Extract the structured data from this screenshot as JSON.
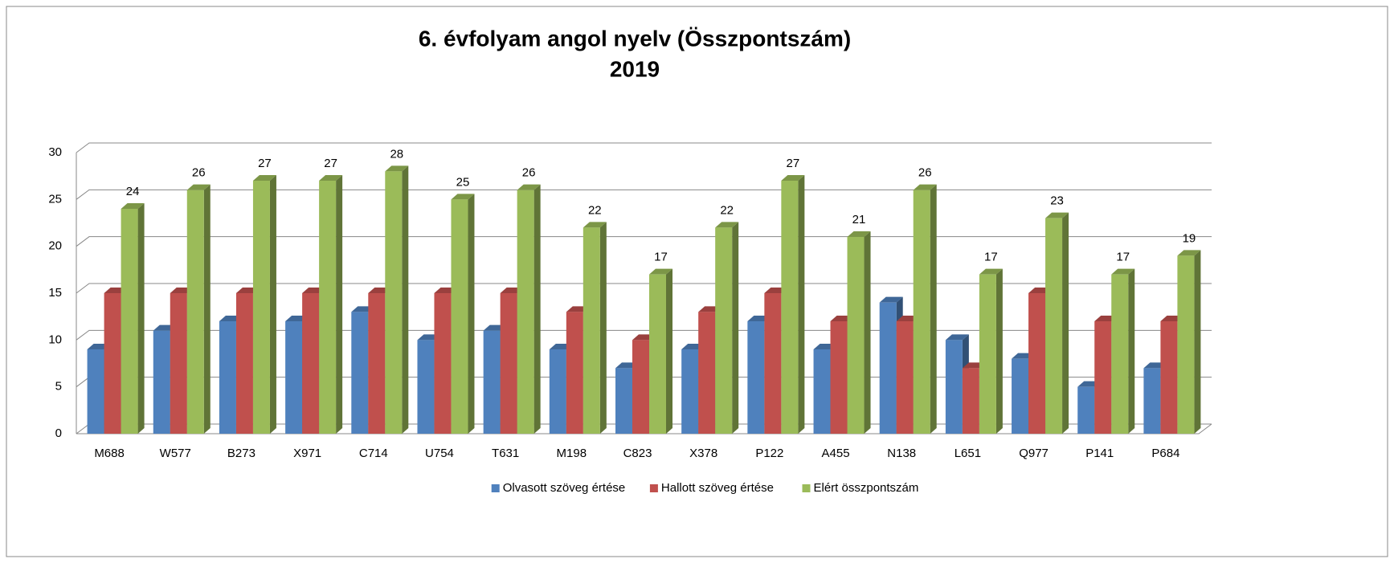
{
  "chart_data": {
    "type": "bar3d",
    "title": "6. évfolyam angol nyelv (Összpontszám)",
    "subtitle": "2019",
    "categories": [
      "M688",
      "W577",
      "B273",
      "X971",
      "C714",
      "U754",
      "T631",
      "M198",
      "C823",
      "X378",
      "P122",
      "A455",
      "N138",
      "L651",
      "Q977",
      "P141",
      "P684"
    ],
    "series": [
      {
        "name": "Olvasott szöveg értése",
        "color": "#4f81bd",
        "values": [
          9,
          11,
          12,
          12,
          13,
          10,
          11,
          9,
          7,
          9,
          12,
          9,
          14,
          10,
          8,
          5,
          7
        ]
      },
      {
        "name": "Hallott szöveg értése",
        "color": "#c0504d",
        "values": [
          15,
          15,
          15,
          15,
          15,
          15,
          15,
          13,
          10,
          13,
          15,
          12,
          12,
          7,
          15,
          12,
          12
        ]
      },
      {
        "name": "Elért összpontszám",
        "color": "#9bbb59",
        "values": [
          24,
          26,
          27,
          27,
          28,
          25,
          26,
          22,
          17,
          22,
          27,
          21,
          26,
          17,
          23,
          17,
          19
        ],
        "data_labels": true
      }
    ],
    "ylim": [
      0,
      30
    ],
    "yticks": [
      0,
      5,
      10,
      15,
      20,
      25,
      30
    ],
    "grid": true,
    "legend": "bottom"
  }
}
